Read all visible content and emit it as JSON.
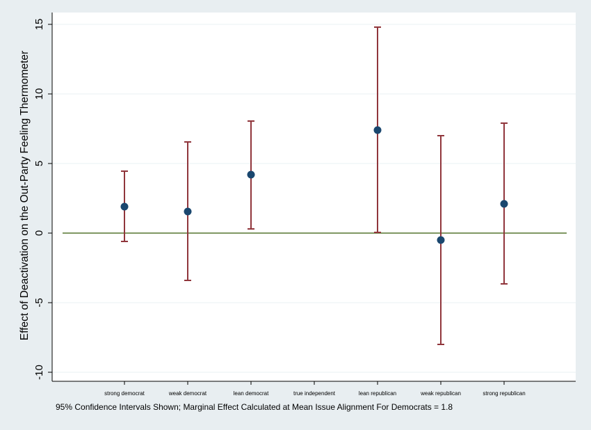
{
  "chart_data": {
    "type": "scatter",
    "subtype": "point estimates with confidence interval error bars",
    "ylabel": "Effect of Deactivation on the Out-Party Feeling Thermometer",
    "xlabel": "",
    "ylim": [
      -10.8,
      15.6
    ],
    "yticks": [
      -10,
      -5,
      0,
      5,
      10,
      15
    ],
    "reference_line": 0,
    "grid": "horizontal",
    "legend": "none",
    "categories": [
      "strong democrat",
      "weak democrat",
      "lean democrat",
      "true independent",
      "lean republican",
      "weak republican",
      "strong republican"
    ],
    "estimates": [
      1.9,
      1.55,
      4.2,
      null,
      7.4,
      -0.5,
      2.1
    ],
    "ci_lower": [
      -0.6,
      -3.4,
      0.3,
      null,
      0.05,
      -8.0,
      -3.65
    ],
    "ci_upper": [
      4.45,
      6.55,
      8.05,
      null,
      14.8,
      7.0,
      7.9
    ],
    "colors": {
      "point": "#1a476f",
      "error_bar": "#90353b",
      "zero_line": "#55752f",
      "grid": "#eaf2f3",
      "plot_bg": "#ffffff",
      "outer_bg": "#e8eef1"
    }
  },
  "footnote": "95% Confidence Intervals Shown; Marginal Effect Calculated at Mean Issue Alignment For Democrats = 1.8"
}
